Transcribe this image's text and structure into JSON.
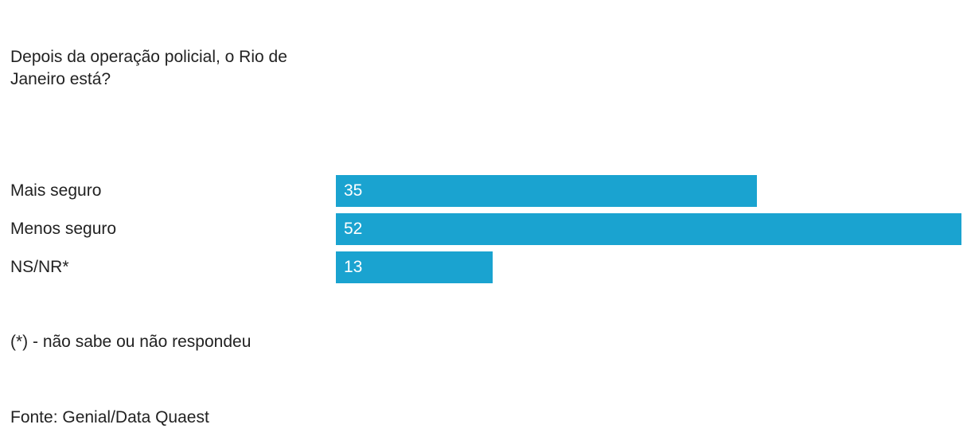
{
  "chart_data": {
    "type": "bar",
    "orientation": "horizontal",
    "title": "Depois da operação policial, o Rio de Janeiro está?",
    "categories": [
      "Mais seguro",
      "Menos seguro",
      "NS/NR*"
    ],
    "values": [
      35,
      52,
      13
    ],
    "color": "#1aa3d0",
    "note": "(*) - não sabe ou não respondeu",
    "source": "Fonte: Genial/Data Quaest"
  }
}
